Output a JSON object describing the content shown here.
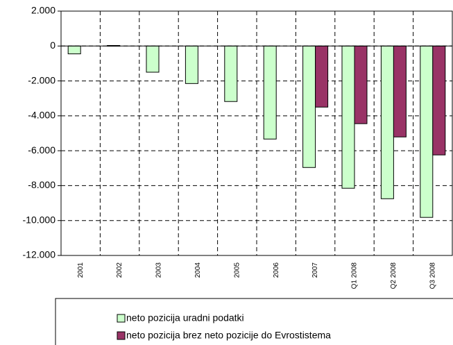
{
  "chart_data": {
    "type": "bar",
    "categories": [
      "2001",
      "2002",
      "2003",
      "2004",
      "2005",
      "2006",
      "2007",
      "Q1 2008",
      "Q2 2008",
      "Q3 2008"
    ],
    "series": [
      {
        "name": "neto pozicija uradni podatki",
        "color": "#ccffcc",
        "values": [
          -450,
          30,
          -1500,
          -2150,
          -3180,
          -5330,
          -6960,
          -8150,
          -8750,
          -9820
        ]
      },
      {
        "name": "neto pozicija brez neto pozicije do Evrostistema",
        "color": "#993366",
        "values": [
          null,
          null,
          null,
          null,
          null,
          null,
          -3500,
          -4450,
          -5210,
          -6240
        ]
      }
    ],
    "ylim": [
      -12000,
      2000
    ],
    "yticks": [
      {
        "value": -12000,
        "label": "-12.000"
      },
      {
        "value": -10000,
        "label": "-10.000"
      },
      {
        "value": -8000,
        "label": "-8.000"
      },
      {
        "value": -6000,
        "label": "-6.000"
      },
      {
        "value": -4000,
        "label": "-4.000"
      },
      {
        "value": -2000,
        "label": "-2.000"
      },
      0,
      {
        "value": 2000,
        "label": "2.000"
      }
    ],
    "grid": true,
    "legend": "bottom"
  }
}
